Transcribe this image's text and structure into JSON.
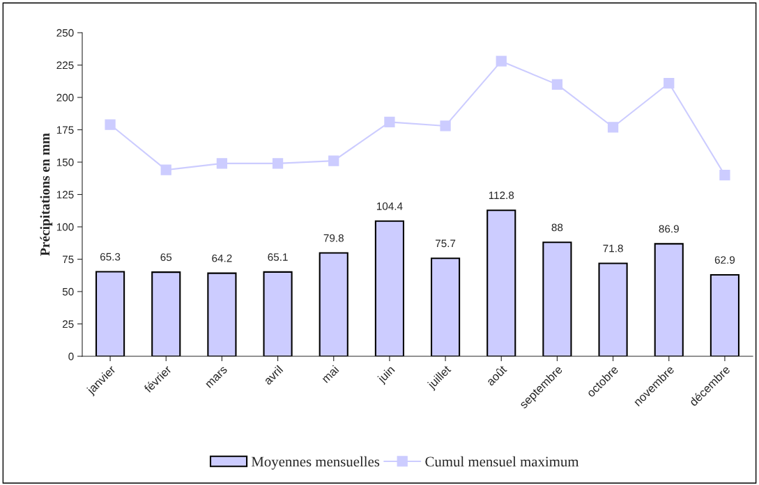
{
  "chart_data": {
    "type": "bar",
    "ylabel": "Précipitations en mm",
    "categories": [
      "janvier",
      "février",
      "mars",
      "avril",
      "mai",
      "juin",
      "juillet",
      "août",
      "septembre",
      "octobre",
      "novembre",
      "décembre"
    ],
    "series": [
      {
        "name": "Moyennes mensuelles",
        "color": "#ccccff",
        "data_labels": true,
        "values": [
          65.3,
          65,
          64.2,
          65.1,
          79.8,
          104.4,
          75.7,
          112.8,
          88,
          71.8,
          86.9,
          62.9
        ]
      },
      {
        "name": "Cumul mensuel maximum",
        "type": "line",
        "color": "#ccccff",
        "marker": "square",
        "values": [
          179,
          144,
          149,
          149,
          151,
          181,
          178,
          228,
          210,
          177,
          211,
          140
        ]
      }
    ],
    "ylim": [
      0,
      250
    ],
    "yticks": [
      0,
      25,
      50,
      75,
      100,
      125,
      150,
      175,
      200,
      225,
      250
    ],
    "grid": false,
    "legend": "bottom"
  }
}
